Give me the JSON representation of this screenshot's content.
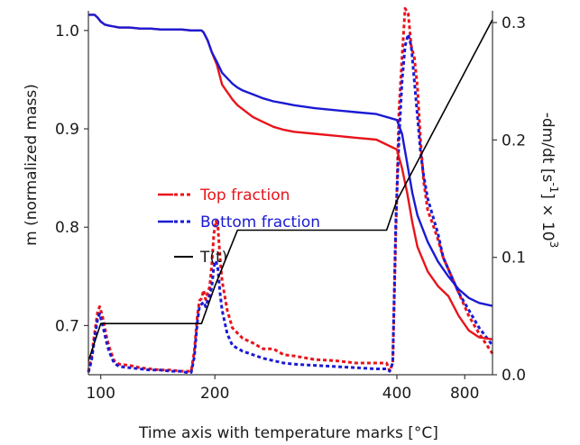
{
  "chart_data": {
    "type": "line",
    "xlabel": "Time axis with temperature marks  [°C]",
    "ylabel_left": "m  (normalized mass)",
    "ylabel_right_parts": [
      "-dm/dt  [s",
      "-1",
      "] × 10",
      "3"
    ],
    "x_ticks": [
      "100",
      "200",
      "400",
      "800"
    ],
    "y_left_ticks": [
      "0.7",
      "0.8",
      "0.9",
      "1.0"
    ],
    "y_right_ticks": [
      "0.0",
      "0.1",
      "0.2",
      "0.3"
    ],
    "ylim_left": [
      0.65,
      1.02
    ],
    "ylim_right": [
      0.0,
      0.31
    ],
    "legend": [
      {
        "label": "Top fraction",
        "color": "#e8141b"
      },
      {
        "label": "Bottom fraction",
        "color": "#1a1ad4"
      },
      {
        "label": "T(t)",
        "color": "#000000"
      }
    ],
    "colors": {
      "top": "#e8141b",
      "bottom": "#1a1ad4",
      "temperature": "#000000",
      "axis": "#3a3a3a"
    },
    "series": [
      {
        "name": "Top fraction",
        "kind": "mass",
        "axis": "left",
        "style": "solid",
        "color": "#e8141b",
        "x": [
          0,
          3,
          6,
          9,
          12,
          16,
          20,
          25,
          30,
          40,
          50,
          60,
          70,
          80,
          90,
          100,
          110,
          112,
          116,
          120,
          125,
          130,
          140,
          145,
          150,
          155,
          160,
          170,
          180,
          190,
          200,
          220,
          240,
          260,
          280,
          300,
          305,
          310,
          315,
          320,
          330,
          340,
          350,
          360,
          370,
          380,
          393
        ],
        "y": [
          1.016,
          1.016,
          1.016,
          1.013,
          1.009,
          1.006,
          1.005,
          1.004,
          1.003,
          1.003,
          1.002,
          1.002,
          1.001,
          1.001,
          1.001,
          1.0,
          1.0,
          0.998,
          0.99,
          0.978,
          0.965,
          0.945,
          0.93,
          0.924,
          0.92,
          0.916,
          0.912,
          0.907,
          0.902,
          0.899,
          0.897,
          0.895,
          0.893,
          0.891,
          0.889,
          0.879,
          0.86,
          0.835,
          0.805,
          0.78,
          0.755,
          0.74,
          0.73,
          0.71,
          0.695,
          0.688,
          0.686
        ]
      },
      {
        "name": "Bottom fraction",
        "kind": "mass",
        "axis": "left",
        "style": "solid",
        "color": "#1a1ad4",
        "x": [
          0,
          3,
          6,
          9,
          12,
          16,
          20,
          25,
          30,
          40,
          50,
          60,
          70,
          80,
          90,
          100,
          110,
          112,
          116,
          120,
          125,
          130,
          140,
          145,
          150,
          160,
          170,
          180,
          190,
          200,
          220,
          240,
          260,
          280,
          300,
          305,
          310,
          315,
          320,
          330,
          340,
          350,
          360,
          370,
          380,
          393
        ],
        "y": [
          1.016,
          1.016,
          1.016,
          1.013,
          1.009,
          1.006,
          1.005,
          1.004,
          1.003,
          1.003,
          1.002,
          1.002,
          1.001,
          1.001,
          1.001,
          1.0,
          1.0,
          0.998,
          0.99,
          0.978,
          0.968,
          0.957,
          0.946,
          0.942,
          0.939,
          0.935,
          0.931,
          0.928,
          0.926,
          0.924,
          0.921,
          0.919,
          0.917,
          0.915,
          0.909,
          0.895,
          0.865,
          0.835,
          0.812,
          0.785,
          0.765,
          0.75,
          0.737,
          0.728,
          0.723,
          0.72
        ]
      },
      {
        "name": "Top fraction",
        "kind": "rate",
        "axis": "right",
        "style": "dashed",
        "color": "#e8141b",
        "x": [
          0,
          3,
          6,
          9,
          11,
          13,
          15,
          17,
          20,
          25,
          30,
          40,
          50,
          60,
          70,
          80,
          90,
          95,
          100,
          103,
          106,
          108,
          110,
          112,
          114,
          116,
          118,
          120,
          122,
          124,
          126,
          128,
          130,
          135,
          140,
          150,
          160,
          170,
          180,
          190,
          200,
          220,
          240,
          260,
          280,
          290,
          293,
          296,
          299,
          302,
          305,
          308,
          311,
          314,
          317,
          320,
          323,
          326,
          330,
          335,
          340,
          345,
          350,
          355,
          360,
          370,
          380,
          393
        ],
        "y": [
          0.003,
          0.015,
          0.035,
          0.054,
          0.058,
          0.052,
          0.045,
          0.035,
          0.024,
          0.012,
          0.009,
          0.008,
          0.006,
          0.005,
          0.004,
          0.004,
          0.003,
          0.003,
          0.003,
          0.02,
          0.05,
          0.063,
          0.065,
          0.072,
          0.064,
          0.07,
          0.075,
          0.094,
          0.12,
          0.131,
          0.126,
          0.1,
          0.08,
          0.055,
          0.04,
          0.031,
          0.027,
          0.022,
          0.022,
          0.017,
          0.016,
          0.013,
          0.012,
          0.01,
          0.01,
          0.01,
          0.003,
          0.01,
          0.12,
          0.225,
          0.27,
          0.312,
          0.308,
          0.28,
          0.27,
          0.245,
          0.2,
          0.165,
          0.14,
          0.128,
          0.115,
          0.1,
          0.09,
          0.08,
          0.07,
          0.05,
          0.035,
          0.018
        ]
      },
      {
        "name": "Bottom fraction",
        "kind": "rate",
        "axis": "right",
        "style": "dashed",
        "color": "#1a1ad4",
        "x": [
          0,
          3,
          6,
          9,
          11,
          13,
          15,
          17,
          20,
          25,
          30,
          40,
          50,
          60,
          70,
          80,
          90,
          95,
          100,
          103,
          106,
          108,
          110,
          112,
          114,
          116,
          118,
          120,
          122,
          124,
          126,
          128,
          130,
          135,
          140,
          150,
          160,
          170,
          180,
          190,
          200,
          220,
          240,
          260,
          280,
          290,
          293,
          296,
          299,
          302,
          305,
          308,
          311,
          314,
          317,
          320,
          323,
          326,
          330,
          335,
          340,
          345,
          350,
          355,
          360,
          370,
          380,
          393
        ],
        "y": [
          0.002,
          0.012,
          0.03,
          0.048,
          0.052,
          0.045,
          0.038,
          0.03,
          0.02,
          0.01,
          0.007,
          0.006,
          0.005,
          0.004,
          0.004,
          0.003,
          0.003,
          0.002,
          0.002,
          0.015,
          0.045,
          0.058,
          0.06,
          0.062,
          0.058,
          0.063,
          0.068,
          0.075,
          0.092,
          0.097,
          0.09,
          0.07,
          0.055,
          0.035,
          0.025,
          0.02,
          0.017,
          0.014,
          0.012,
          0.01,
          0.009,
          0.008,
          0.007,
          0.006,
          0.005,
          0.005,
          0.003,
          0.01,
          0.13,
          0.2,
          0.25,
          0.28,
          0.29,
          0.28,
          0.25,
          0.22,
          0.19,
          0.17,
          0.15,
          0.135,
          0.12,
          0.1,
          0.09,
          0.08,
          0.07,
          0.055,
          0.04,
          0.025
        ]
      },
      {
        "name": "T(t)",
        "kind": "temperature",
        "axis": "left",
        "style": "solid",
        "color": "#000000",
        "x": [
          0,
          12,
          110,
          123,
          145,
          290,
          300,
          393
        ],
        "y": [
          0.664,
          0.702,
          0.702,
          0.74,
          0.797,
          0.797,
          0.827,
          1.011
        ]
      }
    ]
  }
}
